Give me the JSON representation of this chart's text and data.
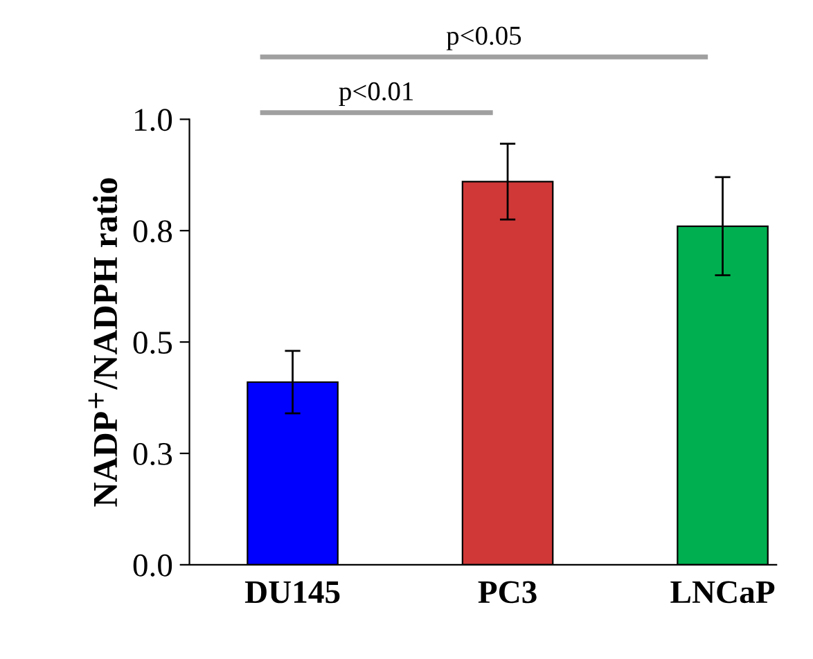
{
  "chart_data": {
    "type": "bar",
    "ylabel": "NADP$^{+}$/NADPH ratio",
    "categories": [
      "DU145",
      "PC3",
      "LNCaP"
    ],
    "values": [
      0.41,
      0.86,
      0.76
    ],
    "colors": [
      "#0000ff",
      "#d03838",
      "#00b050"
    ],
    "errors": [
      0.07,
      0.085,
      0.11
    ],
    "ylim": [
      0,
      1.0
    ],
    "yticks": [
      {
        "value": 0,
        "label": "0.0"
      },
      {
        "value": 0.25,
        "label": "0.3"
      },
      {
        "value": 0.5,
        "label": "0.5"
      },
      {
        "value": 0.75,
        "label": "0.8"
      },
      {
        "value": 1.0,
        "label": "1.0"
      }
    ],
    "annotations": [
      "p<0.01",
      "p<0.05"
    ],
    "grid": false,
    "legend": false
  }
}
